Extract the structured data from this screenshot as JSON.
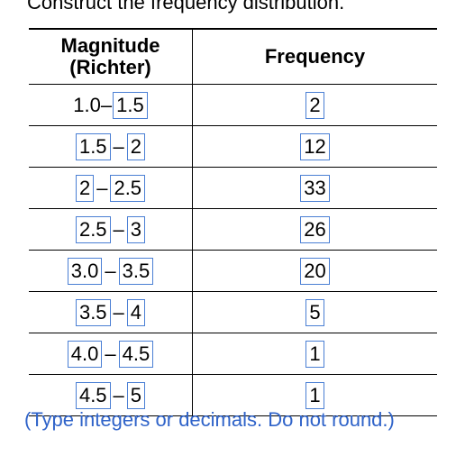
{
  "instruction": "Construct the frequency distribution.",
  "table": {
    "headers": {
      "magnitude_line1": "Magnitude",
      "magnitude_line2": "(Richter)",
      "frequency": "Frequency"
    },
    "rows": [
      {
        "lower": "1.0",
        "lower_is_input": false,
        "upper": "1.5",
        "frequency": "2"
      },
      {
        "lower": "1.5",
        "lower_is_input": true,
        "upper": "2",
        "frequency": "12"
      },
      {
        "lower": "2",
        "lower_is_input": true,
        "upper": "2.5",
        "frequency": "33"
      },
      {
        "lower": "2.5",
        "lower_is_input": true,
        "upper": "3",
        "frequency": "26"
      },
      {
        "lower": "3.0",
        "lower_is_input": true,
        "upper": "3.5",
        "frequency": "20"
      },
      {
        "lower": "3.5",
        "lower_is_input": true,
        "upper": "4",
        "frequency": "5"
      },
      {
        "lower": "4.0",
        "lower_is_input": true,
        "upper": "4.5",
        "frequency": "1"
      },
      {
        "lower": "4.5",
        "lower_is_input": true,
        "upper": "5",
        "frequency": "1"
      }
    ],
    "separator": "–"
  },
  "note": "(Type integers or decimals. Do not round.)",
  "colors": {
    "input_border": "#4a7fd4",
    "note_text": "#2f63c9"
  }
}
